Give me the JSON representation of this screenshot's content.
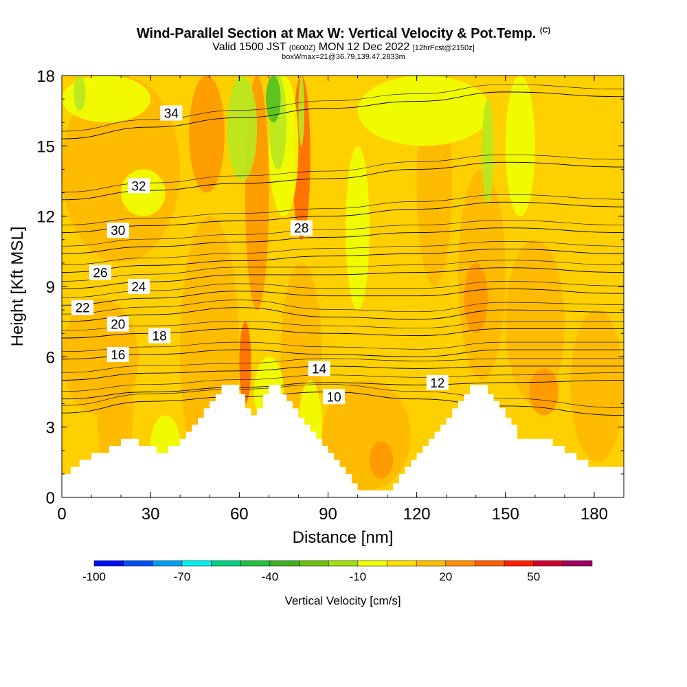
{
  "header": {
    "title_main": "Wind-Parallel Section at Max W: Vertical Velocity & Pot.Temp.",
    "title_mark": "(C)",
    "valid_a": "Valid 1500 JST",
    "valid_utc": "(0600Z)",
    "valid_b": "MON 12 Dec 2022",
    "forecast": "[12hrFcst@2150z]",
    "box_info": "boxWmax=21@36.79,139.47,2833m"
  },
  "chart_data": {
    "type": "heatmap",
    "xlabel": "Distance [nm]",
    "ylabel": "Height [Kft MSL]",
    "xlim": [
      0,
      190
    ],
    "ylim": [
      0,
      18
    ],
    "xticks": [
      0,
      30,
      60,
      90,
      120,
      150,
      180
    ],
    "yticks": [
      0,
      3,
      6,
      9,
      12,
      15,
      18
    ],
    "terrain_kft": [
      [
        0,
        1.0
      ],
      [
        3,
        1.0
      ],
      [
        3,
        1.3
      ],
      [
        6,
        1.3
      ],
      [
        6,
        1.6
      ],
      [
        10,
        1.6
      ],
      [
        10,
        1.9
      ],
      [
        16,
        1.9
      ],
      [
        16,
        2.2
      ],
      [
        20,
        2.2
      ],
      [
        20,
        2.5
      ],
      [
        26,
        2.5
      ],
      [
        26,
        2.2
      ],
      [
        32,
        2.2
      ],
      [
        32,
        1.9
      ],
      [
        36,
        1.9
      ],
      [
        36,
        2.2
      ],
      [
        40,
        2.2
      ],
      [
        40,
        2.5
      ],
      [
        42,
        2.5
      ],
      [
        42,
        2.8
      ],
      [
        44,
        2.8
      ],
      [
        44,
        3.1
      ],
      [
        46,
        3.1
      ],
      [
        46,
        3.4
      ],
      [
        48,
        3.4
      ],
      [
        48,
        3.8
      ],
      [
        50,
        3.8
      ],
      [
        50,
        4.1
      ],
      [
        52,
        4.1
      ],
      [
        52,
        4.4
      ],
      [
        54,
        4.4
      ],
      [
        54,
        4.8
      ],
      [
        60,
        4.8
      ],
      [
        60,
        4.4
      ],
      [
        62,
        4.4
      ],
      [
        62,
        3.8
      ],
      [
        64,
        3.8
      ],
      [
        64,
        3.5
      ],
      [
        66,
        3.5
      ],
      [
        66,
        3.8
      ],
      [
        68,
        3.8
      ],
      [
        68,
        4.4
      ],
      [
        70,
        4.4
      ],
      [
        70,
        4.8
      ],
      [
        74,
        4.8
      ],
      [
        74,
        4.4
      ],
      [
        76,
        4.4
      ],
      [
        76,
        4.1
      ],
      [
        78,
        4.1
      ],
      [
        78,
        3.8
      ],
      [
        80,
        3.8
      ],
      [
        80,
        3.4
      ],
      [
        82,
        3.4
      ],
      [
        82,
        3.1
      ],
      [
        84,
        3.1
      ],
      [
        84,
        2.8
      ],
      [
        86,
        2.8
      ],
      [
        86,
        2.5
      ],
      [
        88,
        2.5
      ],
      [
        88,
        2.2
      ],
      [
        90,
        2.2
      ],
      [
        90,
        1.9
      ],
      [
        92,
        1.9
      ],
      [
        92,
        1.6
      ],
      [
        94,
        1.6
      ],
      [
        94,
        1.3
      ],
      [
        96,
        1.3
      ],
      [
        96,
        1.0
      ],
      [
        98,
        1.0
      ],
      [
        98,
        0.6
      ],
      [
        100,
        0.6
      ],
      [
        100,
        0.3
      ],
      [
        112,
        0.3
      ],
      [
        112,
        0.6
      ],
      [
        114,
        0.6
      ],
      [
        114,
        1.0
      ],
      [
        116,
        1.0
      ],
      [
        116,
        1.3
      ],
      [
        118,
        1.3
      ],
      [
        118,
        1.6
      ],
      [
        120,
        1.6
      ],
      [
        120,
        1.9
      ],
      [
        122,
        1.9
      ],
      [
        122,
        2.2
      ],
      [
        124,
        2.2
      ],
      [
        124,
        2.5
      ],
      [
        126,
        2.5
      ],
      [
        126,
        2.8
      ],
      [
        128,
        2.8
      ],
      [
        128,
        3.1
      ],
      [
        130,
        3.1
      ],
      [
        130,
        3.4
      ],
      [
        132,
        3.4
      ],
      [
        132,
        3.8
      ],
      [
        134,
        3.8
      ],
      [
        134,
        4.1
      ],
      [
        136,
        4.1
      ],
      [
        136,
        4.4
      ],
      [
        138,
        4.4
      ],
      [
        138,
        4.8
      ],
      [
        144,
        4.8
      ],
      [
        144,
        4.4
      ],
      [
        146,
        4.4
      ],
      [
        146,
        4.1
      ],
      [
        148,
        4.1
      ],
      [
        148,
        3.8
      ],
      [
        150,
        3.8
      ],
      [
        150,
        3.4
      ],
      [
        152,
        3.4
      ],
      [
        152,
        3.1
      ],
      [
        154,
        3.1
      ],
      [
        154,
        2.5
      ],
      [
        166,
        2.5
      ],
      [
        166,
        2.2
      ],
      [
        170,
        2.2
      ],
      [
        170,
        1.9
      ],
      [
        174,
        1.9
      ],
      [
        174,
        1.6
      ],
      [
        178,
        1.6
      ],
      [
        178,
        1.3
      ],
      [
        190,
        1.3
      ]
    ],
    "theta_contours": [
      {
        "label": "10",
        "y_kft": [
          3.6,
          4.1,
          4.3,
          4.5,
          4.2,
          3.9,
          3.5
        ],
        "label_at": [
          92,
          4.3
        ]
      },
      {
        "label": "12",
        "y_kft": [
          4.2,
          4.5,
          4.7,
          4.9,
          4.8,
          4.9,
          5.0
        ],
        "label_at": [
          127,
          4.9
        ]
      },
      {
        "label": "14",
        "y_kft": [
          5.0,
          5.3,
          5.4,
          5.6,
          5.5,
          5.6,
          5.6
        ],
        "label_at": [
          87,
          5.5
        ]
      },
      {
        "label": "16",
        "y_kft": [
          5.9,
          6.1,
          6.3,
          6.1,
          6.0,
          6.3,
          6.3
        ],
        "label_at": [
          19,
          6.1
        ]
      },
      {
        "label": "18",
        "y_kft": [
          6.8,
          7.0,
          7.2,
          7.0,
          6.9,
          7.2,
          7.2
        ],
        "label_at": [
          33,
          6.9
        ]
      },
      {
        "label": "20",
        "y_kft": [
          7.5,
          7.8,
          8.1,
          7.7,
          7.6,
          8.0,
          7.9
        ],
        "label_at": [
          19,
          7.4
        ]
      },
      {
        "label": "22",
        "y_kft": [
          8.2,
          8.5,
          8.8,
          8.6,
          8.6,
          8.9,
          8.7
        ],
        "label_at": [
          7,
          8.1
        ]
      },
      {
        "label": "24",
        "y_kft": [
          8.9,
          9.2,
          9.5,
          9.5,
          9.6,
          9.8,
          9.6
        ],
        "label_at": [
          26,
          9.0
        ]
      },
      {
        "label": "26",
        "y_kft": [
          9.6,
          9.9,
          10.1,
          10.3,
          10.4,
          10.6,
          10.4
        ],
        "label_at": [
          13,
          9.6
        ]
      },
      {
        "label": "28",
        "y_kft": [
          10.4,
          10.7,
          10.9,
          11.1,
          11.3,
          11.5,
          11.3
        ],
        "label_at": [
          81,
          11.5
        ]
      },
      {
        "label": "30",
        "y_kft": [
          11.3,
          11.6,
          11.8,
          12.0,
          12.3,
          12.6,
          12.4
        ],
        "label_at": [
          19,
          11.4
        ]
      },
      {
        "label": "32",
        "y_kft": [
          12.7,
          13.1,
          13.4,
          13.6,
          14.0,
          14.3,
          14.1
        ],
        "label_at": [
          26,
          13.3
        ]
      },
      {
        "label": "34",
        "y_kft": [
          15.3,
          15.8,
          16.2,
          16.6,
          16.9,
          17.3,
          17.1
        ],
        "label_at": [
          37,
          16.4
        ]
      }
    ],
    "colorbar": {
      "label": "Vertical Velocity [cm/s]",
      "tick_labels": [
        "-100",
        "-70",
        "-40",
        "-10",
        "20",
        "50"
      ],
      "tick_values": [
        -100,
        -70,
        -40,
        -10,
        20,
        50
      ],
      "bin_edges": [
        -100,
        -90,
        -80,
        -70,
        -60,
        -50,
        -40,
        -30,
        -20,
        -10,
        0,
        10,
        20,
        30,
        40,
        50,
        60,
        70
      ],
      "colors": [
        "#0010f0",
        "#0050f0",
        "#00a0f0",
        "#00f0f0",
        "#00d080",
        "#20c040",
        "#40b020",
        "#70c010",
        "#a0e010",
        "#f0ff00",
        "#ffe000",
        "#ffc000",
        "#ff9000",
        "#ff6000",
        "#ff2000",
        "#d00030",
        "#a00060",
        "#600090"
      ]
    },
    "velocity_field_colors": {
      "base": "#ffd000",
      "weak_up": "#ffb800",
      "moderate_up": "#ff9800",
      "strong_up": "#ff6a00",
      "weak_down": "#f0ff00",
      "moderate_down": "#b8e820",
      "strong_down": "#50c020"
    }
  }
}
